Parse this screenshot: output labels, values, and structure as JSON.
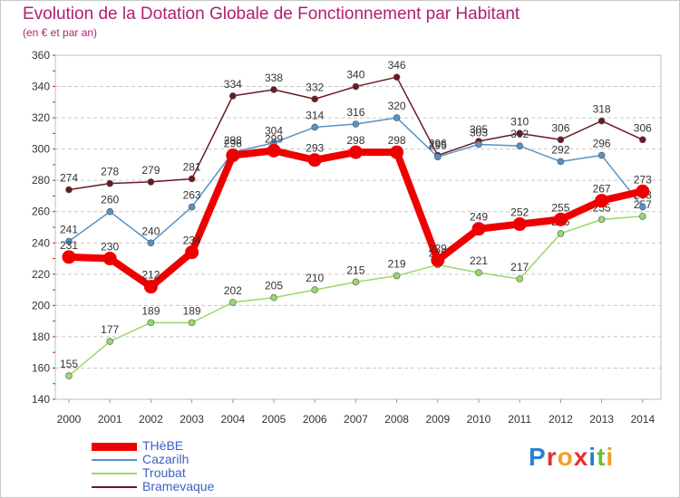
{
  "header": {
    "title": "Evolution de la Dotation Globale de Fonctionnement par Habitant",
    "subtitle": "(en € et par an)"
  },
  "chart_data": {
    "type": "line",
    "title": "Evolution de la Dotation Globale de Fonctionnement par Habitant",
    "subtitle": "(en € et par an)",
    "xlabel": "",
    "ylabel": "",
    "categories": [
      "2000",
      "2001",
      "2002",
      "2003",
      "2004",
      "2005",
      "2006",
      "2007",
      "2008",
      "2009",
      "2010",
      "2011",
      "2012",
      "2013",
      "2014"
    ],
    "ylim": [
      140,
      360
    ],
    "yticks": [
      140,
      160,
      180,
      200,
      220,
      240,
      260,
      280,
      300,
      320,
      340,
      360
    ],
    "grid": "horizontal dashed",
    "legend": "bottom-left",
    "series": [
      {
        "name": "Bramevaque",
        "color": "#6b1a22",
        "values": [
          274,
          278,
          279,
          281,
          334,
          338,
          332,
          340,
          346,
          296,
          305,
          310,
          306,
          318,
          306
        ]
      },
      {
        "name": "Troubat",
        "color": "#99d86a",
        "values": [
          155,
          177,
          189,
          189,
          202,
          205,
          210,
          215,
          219,
          226,
          221,
          217,
          246,
          255,
          257
        ]
      },
      {
        "name": "Cazarilh",
        "color": "#5592c8",
        "values": [
          241,
          260,
          240,
          263,
          298,
          304,
          314,
          316,
          320,
          295,
          303,
          302,
          292,
          296,
          263
        ]
      },
      {
        "name": "THèBE",
        "color": "#ee0000",
        "values": [
          231,
          230,
          212,
          234,
          296,
          299,
          293,
          298,
          298,
          229,
          249,
          252,
          255,
          267,
          273
        ]
      }
    ]
  },
  "legend": {
    "items": [
      {
        "label": "THèBE",
        "color": "#ee0000"
      },
      {
        "label": "Cazarilh",
        "color": "#5592c8"
      },
      {
        "label": "Troubat",
        "color": "#99d86a"
      },
      {
        "label": "Bramevaque",
        "color": "#6b1a22"
      }
    ]
  },
  "logo": {
    "text": "Proxiti",
    "letters": [
      {
        "ch": "P",
        "color": "#2b7fd0"
      },
      {
        "ch": "r",
        "color": "#e4312b"
      },
      {
        "ch": "o",
        "color": "#f0a020"
      },
      {
        "ch": "x",
        "color": "#e4312b"
      },
      {
        "ch": "i",
        "color": "#2b7fd0"
      },
      {
        "ch": "t",
        "color": "#6cbf3a"
      },
      {
        "ch": "i",
        "color": "#f0a020"
      }
    ]
  }
}
